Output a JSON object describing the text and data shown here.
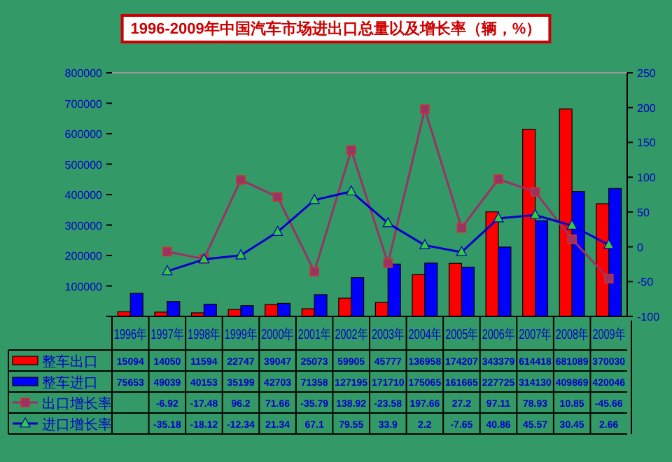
{
  "chart_data": {
    "type": "bar",
    "title": "1996-2009年中国汽车市场进出口总量以及增长率（辆，%）",
    "categories": [
      "1996年",
      "1997年",
      "1998年",
      "1999年",
      "2000年",
      "2001年",
      "2002年",
      "2003年",
      "2004年",
      "2005年",
      "2006年",
      "2007年",
      "2008年",
      "2009年"
    ],
    "series": [
      {
        "name": "整车出口",
        "color": "#ff0000",
        "values": [
          15094,
          14050,
          11594,
          22747,
          39047,
          25073,
          59905,
          45777,
          136958,
          174207,
          343379,
          614418,
          681089,
          370030
        ]
      },
      {
        "name": "整车进口",
        "color": "#0000ff",
        "values": [
          75653,
          49039,
          40153,
          35199,
          42703,
          71358,
          127195,
          171710,
          175065,
          161665,
          227725,
          314130,
          409869,
          420046
        ]
      },
      {
        "name": "出口增长率",
        "type": "line",
        "axis": "y2",
        "color": "#993366",
        "marker": "square",
        "values": [
          null,
          -6.92,
          -17.48,
          96.2,
          71.66,
          -35.79,
          138.92,
          -23.58,
          197.66,
          27.2,
          97.11,
          78.93,
          10.85,
          -45.66
        ]
      },
      {
        "name": "进口增长率",
        "type": "line",
        "axis": "y2",
        "color": "#0000cc",
        "marker": "triangle",
        "values": [
          null,
          -35.18,
          -18.12,
          -12.34,
          21.34,
          67.1,
          79.55,
          33.9,
          2.2,
          -7.65,
          40.86,
          45.57,
          30.45,
          2.66
        ]
      }
    ],
    "ylim": [
      0,
      800000
    ],
    "yticks": [
      {
        "value": 0,
        "label": null
      },
      100000,
      200000,
      300000,
      400000,
      500000,
      600000,
      700000,
      800000
    ],
    "y2lim": [
      -100,
      250
    ],
    "y2ticks": [
      -100,
      -50,
      0,
      50,
      100,
      150,
      200,
      250
    ],
    "legend": "bottom",
    "data_labels": true
  }
}
